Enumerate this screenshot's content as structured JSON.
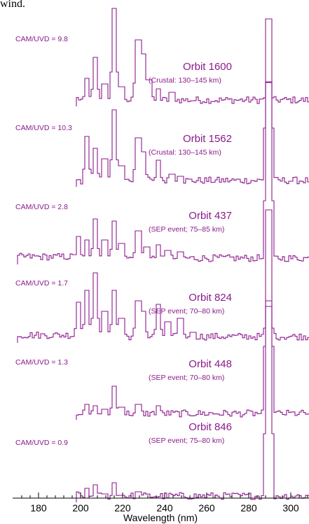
{
  "page": {
    "caption_fragment": "wind."
  },
  "chart_data": {
    "type": "line",
    "title": "",
    "xlabel": "Wavelength (nm)",
    "ylabel": "",
    "xlim": [
      170,
      310
    ],
    "xticks": [
      180,
      200,
      220,
      240,
      260,
      280,
      300
    ],
    "grid": false,
    "line_color": "#8B1A8B",
    "series": [
      {
        "name": "Orbit 1600",
        "sub": "(Crustal: 130–145 km)",
        "ratio": "CAM/UVD = 9.8",
        "peaks": [
          [
            202.5,
            40
          ],
          [
            206.5,
            70
          ],
          [
            211,
            32
          ],
          [
            215.5,
            140
          ],
          [
            219,
            28
          ],
          [
            227,
            95
          ],
          [
            229,
            75
          ],
          [
            232,
            38
          ],
          [
            236.5,
            25
          ],
          [
            243,
            20
          ],
          [
            289,
            35
          ]
        ]
      },
      {
        "name": "Orbit 1562",
        "sub": "(Crustal: 130–145 km)",
        "ratio": "CAM/UVD = 10.3",
        "peaks": [
          [
            202.5,
            72
          ],
          [
            206.5,
            55
          ],
          [
            211,
            40
          ],
          [
            215.5,
            110
          ],
          [
            219,
            30
          ],
          [
            227,
            70
          ],
          [
            229,
            50
          ],
          [
            236.5,
            38
          ],
          [
            243,
            18
          ],
          [
            247,
            15
          ],
          [
            289,
            240
          ]
        ]
      },
      {
        "name": "Orbit 437",
        "sub": "(SEP event; 75–85 km)",
        "ratio": "CAM/UVD = 2.8",
        "peaks": [
          [
            198.5,
            40
          ],
          [
            202.5,
            35
          ],
          [
            206.5,
            65
          ],
          [
            211,
            35
          ],
          [
            215.5,
            62
          ],
          [
            219,
            30
          ],
          [
            227,
            48
          ],
          [
            231,
            25
          ],
          [
            236.5,
            28
          ],
          [
            241,
            20
          ],
          [
            247,
            18
          ],
          [
            289,
            260
          ]
        ]
      },
      {
        "name": "Orbit 824",
        "sub": "(SEP event; 70–80 km)",
        "ratio": "CAM/UVD = 1.7",
        "peaks": [
          [
            198.5,
            58
          ],
          [
            202.5,
            75
          ],
          [
            206.5,
            100
          ],
          [
            211,
            45
          ],
          [
            215.5,
            75
          ],
          [
            219,
            35
          ],
          [
            227,
            60
          ],
          [
            229,
            45
          ],
          [
            236.5,
            55
          ],
          [
            241,
            30
          ],
          [
            247,
            35
          ],
          [
            253,
            15
          ],
          [
            289,
            60
          ]
        ]
      },
      {
        "name": "Orbit 448",
        "sub": "(SEP event; 70–80 km)",
        "ratio": "CAM/UVD = 1.3",
        "peaks": [
          [
            202.5,
            22
          ],
          [
            206.5,
            20
          ],
          [
            211,
            15
          ],
          [
            215.5,
            48
          ],
          [
            219,
            18
          ],
          [
            227,
            22
          ],
          [
            236.5,
            20
          ],
          [
            289,
            300
          ]
        ]
      },
      {
        "name": "Orbit 846",
        "sub": "(SEP event; 75–80 km)",
        "ratio": "CAM/UVD = 0.9",
        "peaks": [
          [
            202.5,
            20
          ],
          [
            206.5,
            25
          ],
          [
            211,
            12
          ],
          [
            215.5,
            28
          ],
          [
            219,
            10
          ],
          [
            227,
            15
          ],
          [
            289,
            280
          ]
        ]
      }
    ]
  }
}
